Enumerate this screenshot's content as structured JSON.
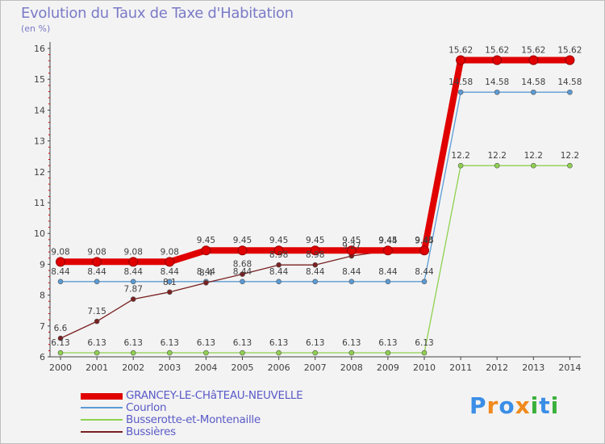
{
  "chart_data": {
    "type": "line",
    "title": "Evolution du Taux de Taxe d'Habitation",
    "subtitle": "(en %)",
    "x": [
      "2000",
      "2001",
      "2002",
      "2003",
      "2004",
      "2005",
      "2006",
      "2007",
      "2008",
      "2009",
      "2010",
      "2011",
      "2012",
      "2013",
      "2014"
    ],
    "ylim": [
      6,
      16
    ],
    "yticks": [
      "6",
      "7",
      "8",
      "9",
      "10",
      "11",
      "12",
      "13",
      "14",
      "15",
      "16"
    ],
    "grid": false,
    "legend_position": "bottom-left",
    "series": [
      {
        "name": "GRANCEY-LE-CHâTEAU-NEUVELLE",
        "color": "#e00000",
        "values": [
          9.08,
          9.08,
          9.08,
          9.08,
          9.45,
          9.45,
          9.45,
          9.45,
          9.45,
          9.45,
          9.45,
          15.62,
          15.62,
          15.62,
          15.62
        ],
        "labels": [
          "9.08",
          "9.08",
          "9.08",
          "9.08",
          "9.45",
          "9.45",
          "9.45",
          "9.45",
          "9.45",
          "9.45",
          "9.45",
          "15.62",
          "15.62",
          "15.62",
          "15.62"
        ]
      },
      {
        "name": "Courlon",
        "color": "#5b9bd5",
        "values": [
          8.44,
          8.44,
          8.44,
          8.44,
          8.44,
          8.44,
          8.44,
          8.44,
          8.44,
          8.44,
          8.44,
          14.58,
          14.58,
          14.58,
          14.58
        ],
        "labels": [
          "8.44",
          "8.44",
          "8.44",
          "8.44",
          "8.44",
          "8.44",
          "8.44",
          "8.44",
          "8.44",
          "8.44",
          "8.44",
          "14.58",
          "14.58",
          "14.58",
          "14.58"
        ]
      },
      {
        "name": "Busserotte-et-Montenaille",
        "color": "#8fd14f",
        "values": [
          6.13,
          6.13,
          6.13,
          6.13,
          6.13,
          6.13,
          6.13,
          6.13,
          6.13,
          6.13,
          6.13,
          12.2,
          12.2,
          12.2,
          12.2
        ],
        "labels": [
          "6.13",
          "6.13",
          "6.13",
          "6.13",
          "6.13",
          "6.13",
          "6.13",
          "6.13",
          "6.13",
          "6.13",
          "6.13",
          "12.2",
          "12.2",
          "12.2",
          "12.2"
        ]
      },
      {
        "name": "Bussières",
        "color": "#7a2020",
        "values": [
          6.6,
          7.15,
          7.87,
          8.1,
          8.4,
          8.68,
          8.98,
          8.98,
          9.27,
          9.44,
          9.44,
          null,
          null,
          null,
          null
        ],
        "labels": [
          "6.6",
          "7.15",
          "7.87",
          "8.1",
          "8.4",
          "8.68",
          "8.98",
          "8.98",
          "9.27",
          "9.44",
          "9.44",
          null,
          null,
          null,
          null
        ]
      }
    ]
  },
  "legend": {
    "items": [
      {
        "label": "GRANCEY-LE-CHâTEAU-NEUVELLE",
        "color": "#e00000"
      },
      {
        "label": "Courlon",
        "color": "#5b9bd5"
      },
      {
        "label": "Busserotte-et-Montenaille",
        "color": "#8fd14f"
      },
      {
        "label": "Bussières",
        "color": "#7a2020"
      }
    ]
  },
  "logo": {
    "text": "Proxiti",
    "letters": [
      "P",
      "r",
      "o",
      "x",
      "i",
      "t",
      "i"
    ],
    "colors": [
      "#3a8ee6",
      "#f08a1c",
      "#3a8ee6",
      "#f08a1c",
      "#3ab03a",
      "#3a8ee6",
      "#3ab03a"
    ]
  }
}
